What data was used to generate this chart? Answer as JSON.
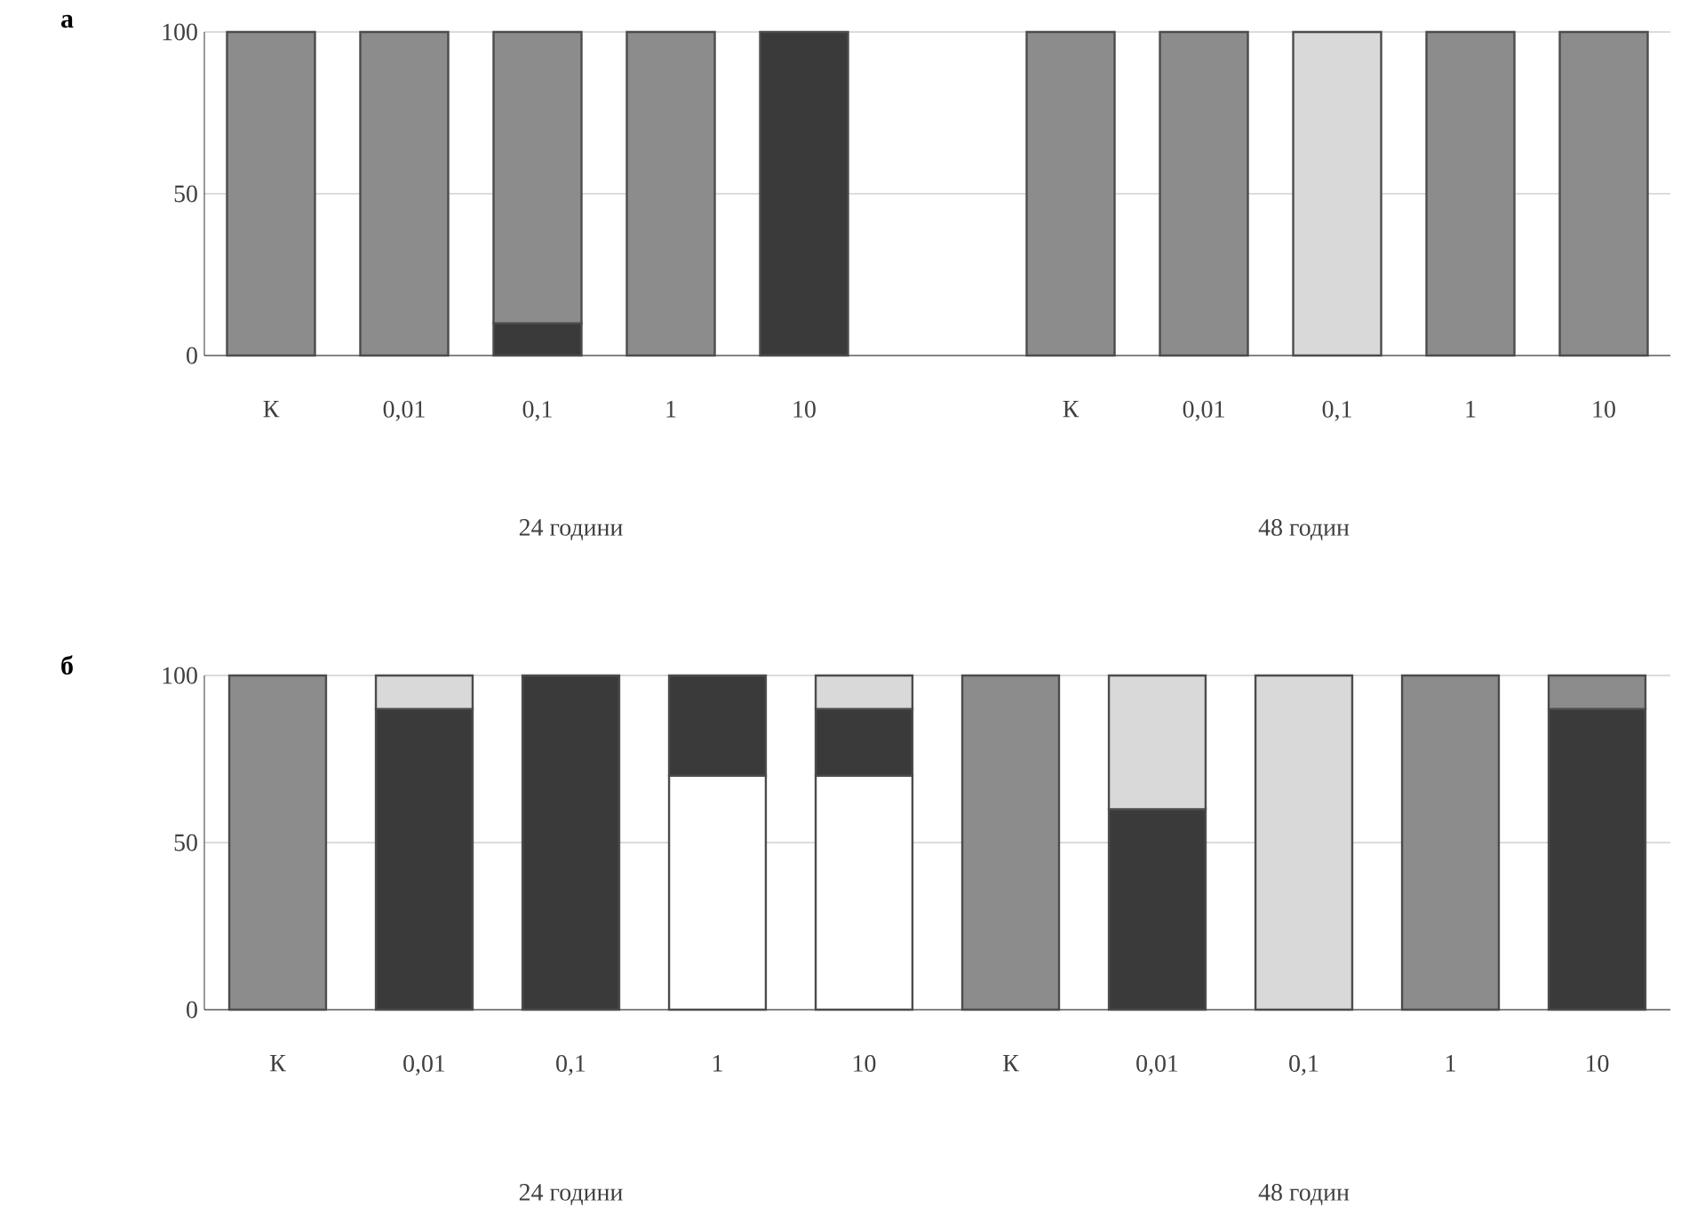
{
  "chart_data": [
    {
      "type": "bar",
      "title": "а",
      "stacked": true,
      "grid": "y",
      "categories": [
        "К",
        "0,01",
        "0,1",
        "1",
        "10",
        null,
        "К",
        "0,01",
        "0,1",
        "1",
        "10"
      ],
      "ylim": [
        0,
        100
      ],
      "yticks": [
        0,
        50,
        100
      ],
      "annotations": [
        "24 години",
        "48 годин"
      ],
      "series": [
        {
          "color": "#ffffff",
          "values": [
            null,
            null,
            null,
            null,
            null,
            null,
            null,
            null,
            null,
            null,
            null
          ]
        },
        {
          "color": "#3a3a3a",
          "values": [
            null,
            null,
            10,
            null,
            100,
            null,
            null,
            null,
            null,
            null,
            null
          ]
        },
        {
          "color": "#d9d9d9",
          "values": [
            null,
            null,
            null,
            null,
            null,
            null,
            null,
            null,
            100,
            null,
            null
          ]
        },
        {
          "color": "#8c8c8c",
          "values": [
            100,
            100,
            90,
            100,
            null,
            null,
            100,
            100,
            null,
            100,
            100
          ]
        }
      ]
    },
    {
      "type": "bar",
      "title": "б",
      "stacked": true,
      "grid": "y",
      "categories": [
        "К",
        "0,01",
        "0,1",
        "1",
        "10",
        "К",
        "0,01",
        "0,1",
        "1",
        "10"
      ],
      "ylim": [
        0,
        100
      ],
      "yticks": [
        0,
        50,
        100
      ],
      "annotations": [
        "24 години",
        "48 годин"
      ],
      "series": [
        {
          "color": "#ffffff",
          "values": [
            null,
            null,
            null,
            70,
            70,
            null,
            null,
            null,
            null,
            null
          ]
        },
        {
          "color": "#3a3a3a",
          "values": [
            null,
            90,
            100,
            30,
            20,
            null,
            60,
            null,
            null,
            90
          ]
        },
        {
          "color": "#d9d9d9",
          "values": [
            null,
            10,
            null,
            null,
            10,
            null,
            40,
            100,
            null,
            null
          ]
        },
        {
          "color": "#8c8c8c",
          "values": [
            100,
            null,
            null,
            null,
            null,
            100,
            null,
            null,
            100,
            10
          ]
        }
      ]
    }
  ]
}
